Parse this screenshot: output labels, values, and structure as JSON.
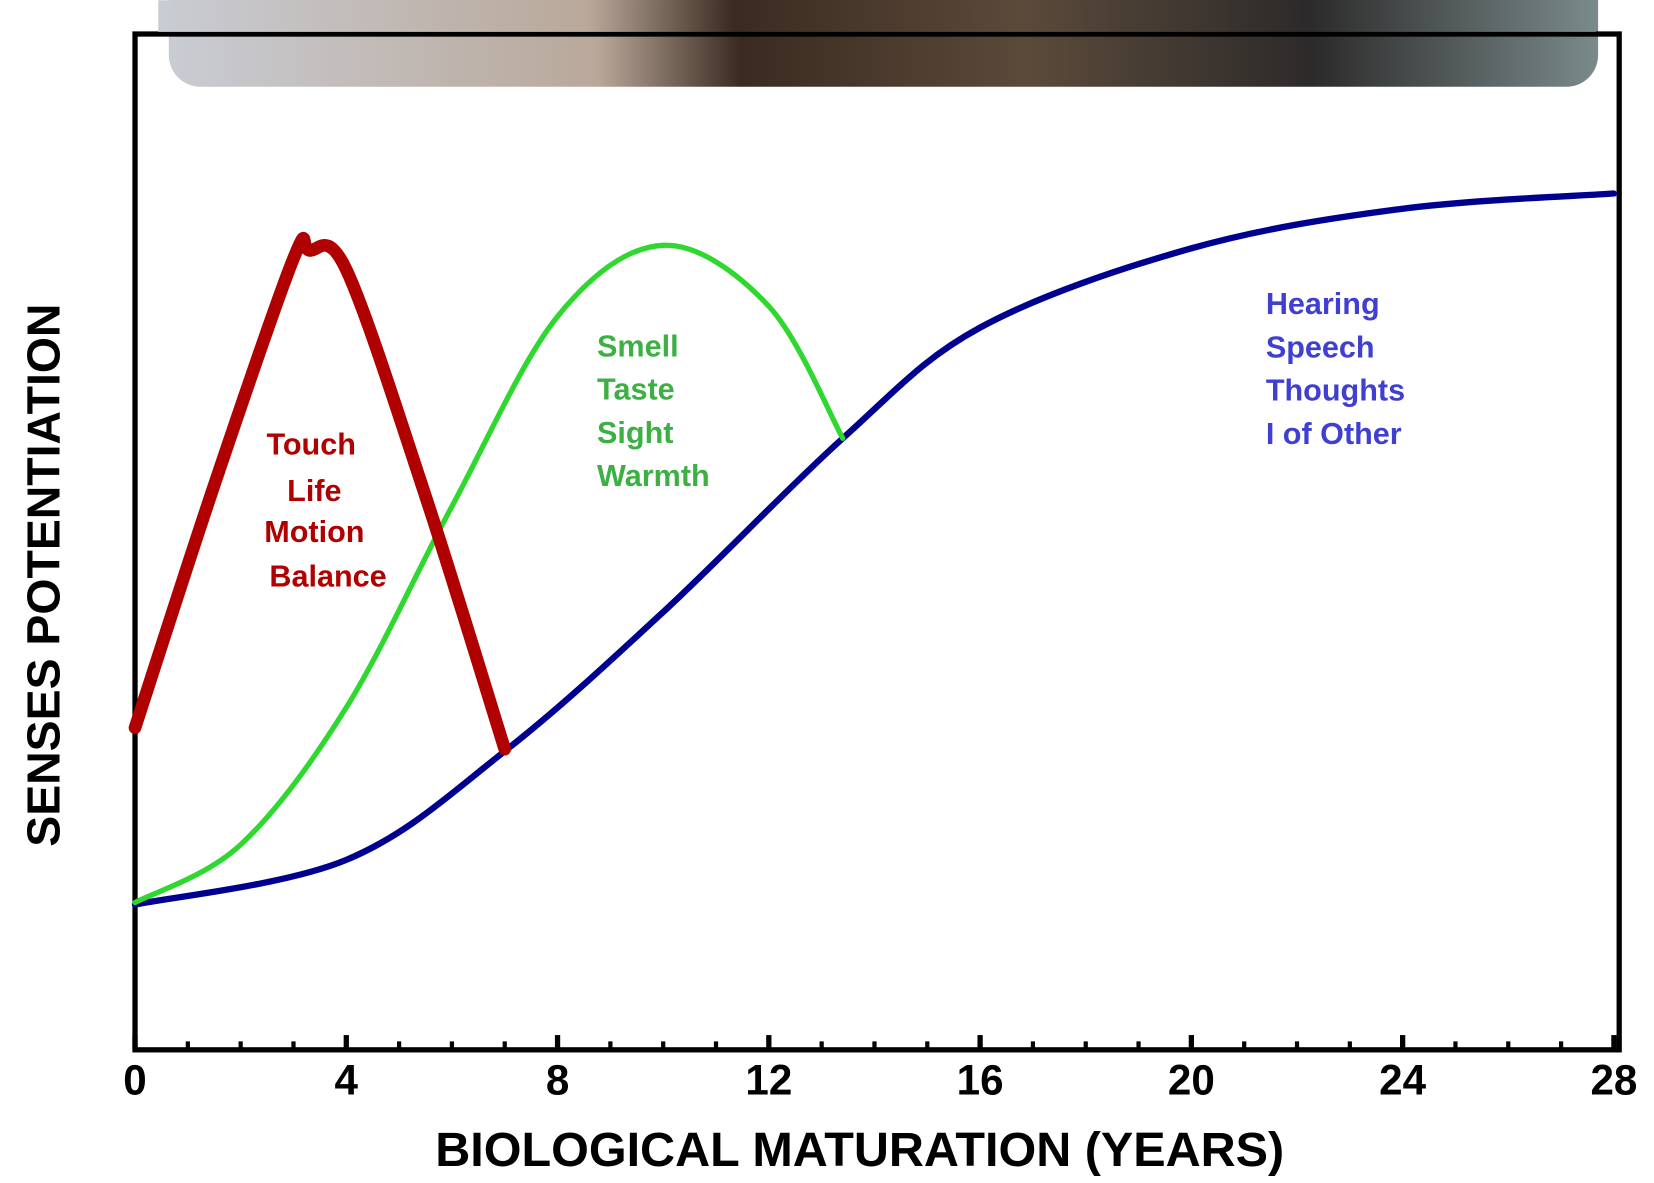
{
  "chart_data": {
    "type": "line",
    "xlabel": "BIOLOGICAL MATURATION (YEARS)",
    "ylabel": "SENSES POTENTIATION",
    "xlim": [
      0,
      28
    ],
    "ylim": [
      0,
      100
    ],
    "xticks": [
      0,
      4,
      8,
      12,
      16,
      20,
      24,
      28
    ],
    "xminorticks": [
      1,
      2,
      3,
      5,
      6,
      7,
      9,
      10,
      11,
      13,
      14,
      15,
      17,
      18,
      19,
      21,
      22,
      23,
      25,
      26,
      27
    ],
    "series": [
      {
        "color": "#000090",
        "x": [
          0,
          4,
          7,
          10,
          13.4,
          16,
          20,
          24,
          28
        ],
        "values": [
          14.3,
          18.7,
          29.4,
          43.1,
          60.2,
          71.1,
          78.9,
          82.8,
          84.3
        ]
      },
      {
        "color": "#2ed82e",
        "x": [
          0,
          2,
          4,
          6,
          8,
          10,
          12,
          13.4
        ],
        "values": [
          14.5,
          20.2,
          33.7,
          53.5,
          72.2,
          79.2,
          73.2,
          60.2
        ]
      },
      {
        "color": "#b00000",
        "x": [
          0,
          1.5,
          3,
          3.3,
          4,
          5.5,
          7
        ],
        "values": [
          31.7,
          55.6,
          77.9,
          78.7,
          76.8,
          54.5,
          29.6
        ]
      }
    ],
    "annotations": [
      {
        "color": "#b00000",
        "lines": [
          "Touch",
          "Life",
          "Motion",
          "Balance"
        ]
      },
      {
        "color": "#3cb043",
        "lines": [
          "Smell",
          "Taste",
          "Sight",
          "Warmth"
        ]
      },
      {
        "color": "#4040d0",
        "lines": [
          "Hearing",
          "Speech",
          "Thoughts",
          "I of Other"
        ]
      }
    ]
  }
}
